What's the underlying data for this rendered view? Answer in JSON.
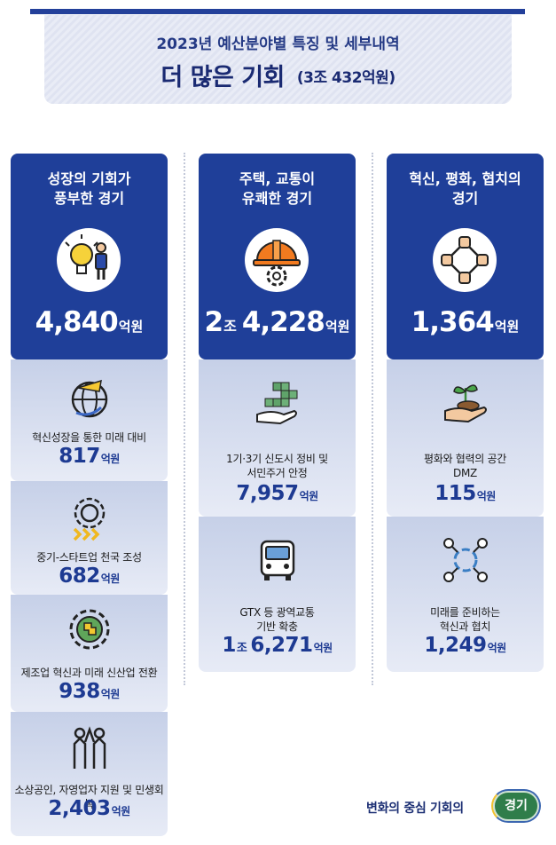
{
  "header": {
    "subtitle": "2023년 예산분야별 특징 및 세부내역",
    "title": "더 많은 기회",
    "title_paren": "(3조 432억원)"
  },
  "columns": [
    {
      "title": "성장의 기회가\n풍부한 경기",
      "icon": "lightbulb-person-icon",
      "amount": "4,840",
      "unit": "억원",
      "items": [
        {
          "icon": "globe-arrow-icon",
          "label": "혁신성장을 통한 미래 대비",
          "value": "817",
          "unit": "억원"
        },
        {
          "icon": "gear-arrows-icon",
          "label": "중기-스타트업 천국 조성",
          "value": "682",
          "unit": "억원"
        },
        {
          "icon": "gear-puzzle-icon",
          "label": "제조업 혁신과 미래 신산업 전환",
          "value": "938",
          "unit": "억원"
        },
        {
          "icon": "people-cooperation-icon",
          "label": "소상공인, 자영업자 지원 및 민생회복",
          "value": "2,403",
          "unit": "억원"
        }
      ]
    },
    {
      "title": "주택, 교통이\n유쾌한 경기",
      "icon": "helmet-gear-icon",
      "amount_jo": "2",
      "jo_unit": "조",
      "amount": "4,228",
      "unit": "억원",
      "items": [
        {
          "icon": "hand-blocks-icon",
          "label": "1기·3기 신도시 정비 및\n서민주거 안정",
          "value": "7,957",
          "unit": "억원"
        },
        {
          "icon": "bus-icon",
          "label": "GTX 등 광역교통\n기반 확충",
          "value_jo": "1",
          "jo_unit": "조",
          "value": "6,271",
          "unit": "억원"
        }
      ]
    },
    {
      "title": "혁신, 평화, 협치의\n경기",
      "icon": "hands-circle-icon",
      "amount": "1,364",
      "unit": "억원",
      "items": [
        {
          "icon": "hand-sprout-icon",
          "label": "평화와 협력의 공간\nDMZ",
          "value": "115",
          "unit": "억원"
        },
        {
          "icon": "network-cycle-icon",
          "label": "미래를 준비하는\n혁신과 협치",
          "value": "1,249",
          "unit": "억원"
        }
      ]
    }
  ],
  "footer": {
    "slogan": "변화의 중심 기회의",
    "logo_text": "경기"
  },
  "colors": {
    "primary": "#1f3f99",
    "card_light": "#dfe5f3",
    "logo_green": "#2f7d4a"
  }
}
